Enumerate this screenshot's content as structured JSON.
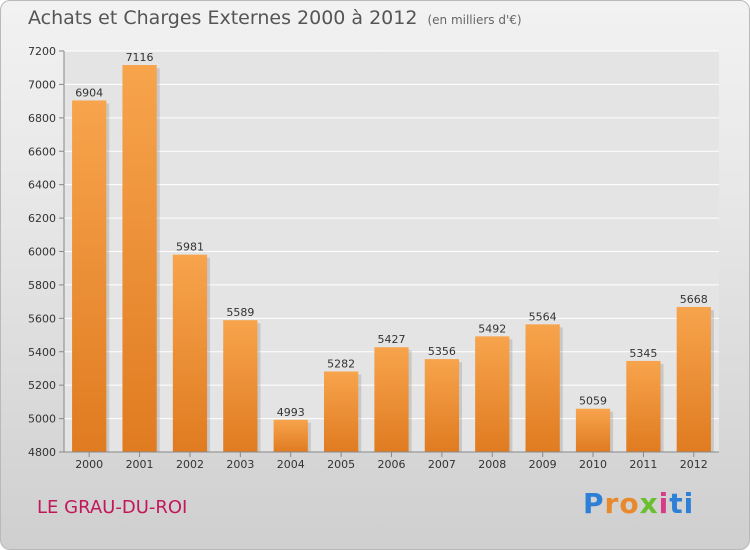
{
  "title": "Achats et Charges Externes 2000 à 2012",
  "unit": "(en milliers d'€)",
  "commune": "LE GRAU-DU-ROI",
  "brand": "Proxiti",
  "colors": {
    "bar_top": "#f7a44d",
    "bar_bottom": "#e07b20",
    "grid": "#ffffff"
  },
  "chart_data": {
    "type": "bar",
    "categories": [
      "2000",
      "2001",
      "2002",
      "2003",
      "2004",
      "2005",
      "2006",
      "2007",
      "2008",
      "2009",
      "2010",
      "2011",
      "2012"
    ],
    "values": [
      6904,
      7116,
      5981,
      5589,
      4993,
      5282,
      5427,
      5356,
      5492,
      5564,
      5059,
      5345,
      5668
    ],
    "ylim": [
      4800,
      7200
    ],
    "yticks": [
      4800,
      5000,
      5200,
      5400,
      5600,
      5800,
      6000,
      6200,
      6400,
      6600,
      6800,
      7000,
      7200
    ],
    "grid": true
  }
}
